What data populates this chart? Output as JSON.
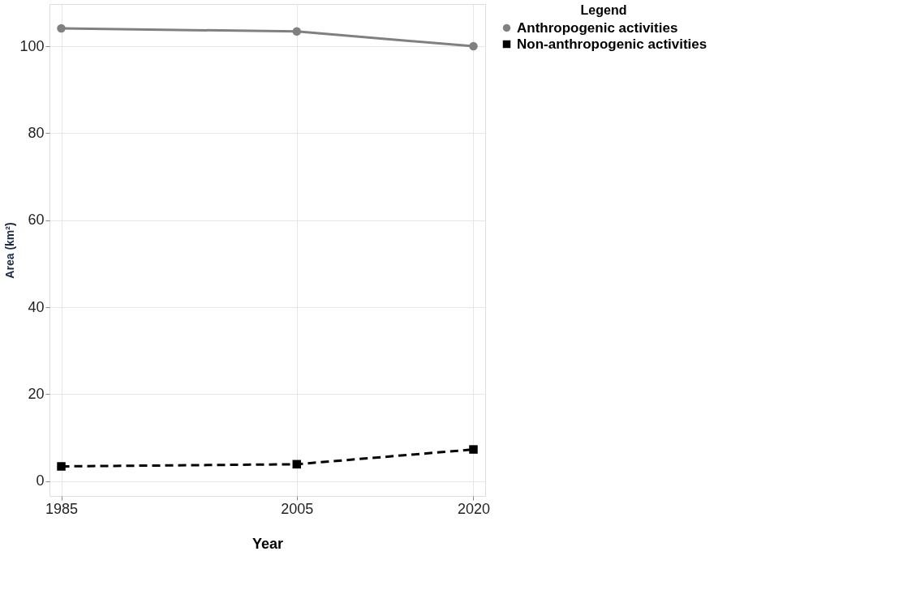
{
  "chart_data": {
    "type": "line",
    "xlabel": "Year",
    "ylabel": "Area (km²)",
    "legend_title": "Legend",
    "legend": "top right",
    "x": [
      1985,
      2005,
      2020
    ],
    "xlim": [
      1984,
      2021
    ],
    "xticks": [
      1985,
      2005,
      2020
    ],
    "ylim": [
      -3.4,
      109.7
    ],
    "yticks": [
      0,
      20,
      40,
      60,
      80,
      100
    ],
    "grid": true,
    "series": [
      {
        "name": "Anthropogenic activities",
        "color": "#808080",
        "values": [
          104.1,
          103.4,
          100.0
        ],
        "marker": "circle",
        "line_style": "solid"
      },
      {
        "name": "Non-anthropogenic activities",
        "color": "#000000",
        "values": [
          3.4,
          3.9,
          7.3
        ],
        "marker": "square",
        "line_style": "dashed"
      }
    ]
  }
}
